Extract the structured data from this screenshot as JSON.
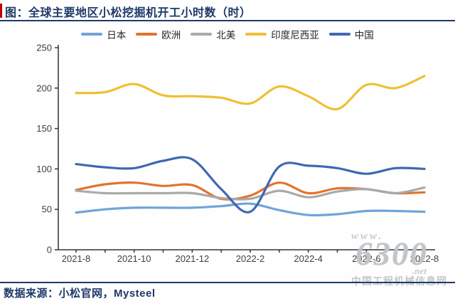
{
  "header": {
    "title": "图：全球主要地区小松挖掘机开工小时数（时）"
  },
  "footer": {
    "source_label": "数据来源：小松官网，Mysteel"
  },
  "watermark": {
    "line1": "www.",
    "line2": "6300",
    "line3": ".net",
    "line4": "中国工程机械信息网"
  },
  "colors": {
    "accent_navy": "#1E3A68",
    "title_accent_red": "#C00000",
    "axis_line": "#333333",
    "axis_text": "#3F3F3F",
    "watermark_gray": "#C7CBCE"
  },
  "chart_data": {
    "type": "line",
    "title": "全球主要地区小松挖掘机开工小时数（时）",
    "grid": false,
    "legend_position": "top",
    "ylim": [
      0,
      250
    ],
    "y_ticks": [
      0,
      50,
      100,
      150,
      200,
      250
    ],
    "categories": [
      "2021-8",
      "2021-9",
      "2021-10",
      "2021-11",
      "2021-12",
      "2022-1",
      "2022-2",
      "2022-3",
      "2022-4",
      "2022-5",
      "2022-6",
      "2022-7",
      "2022-8"
    ],
    "x_label_every": 2,
    "x_tick_labels": [
      "2021-8",
      "2021-10",
      "2021-12",
      "2022-2",
      "2022-4",
      "2022-6",
      "2022-8"
    ],
    "series": [
      {
        "name": "日本",
        "color": "#6FA4D8",
        "values": [
          46,
          50,
          52,
          52,
          52,
          54,
          57,
          49,
          43,
          44,
          48,
          48,
          47
        ]
      },
      {
        "name": "欧洲",
        "color": "#E2732D",
        "values": [
          74,
          81,
          83,
          79,
          80,
          63,
          67,
          83,
          70,
          76,
          75,
          70,
          71
        ]
      },
      {
        "name": "北美",
        "color": "#A9A9A9",
        "values": [
          73,
          70,
          70,
          70,
          70,
          64,
          63,
          73,
          65,
          72,
          75,
          70,
          77
        ]
      },
      {
        "name": "印度尼西亚",
        "color": "#EFC032",
        "values": [
          194,
          195,
          205,
          191,
          190,
          188,
          181,
          202,
          190,
          174,
          204,
          200,
          215
        ]
      },
      {
        "name": "中国",
        "color": "#3E68B2",
        "values": [
          106,
          102,
          101,
          110,
          112,
          75,
          47,
          103,
          104,
          101,
          94,
          101,
          100
        ]
      }
    ]
  }
}
